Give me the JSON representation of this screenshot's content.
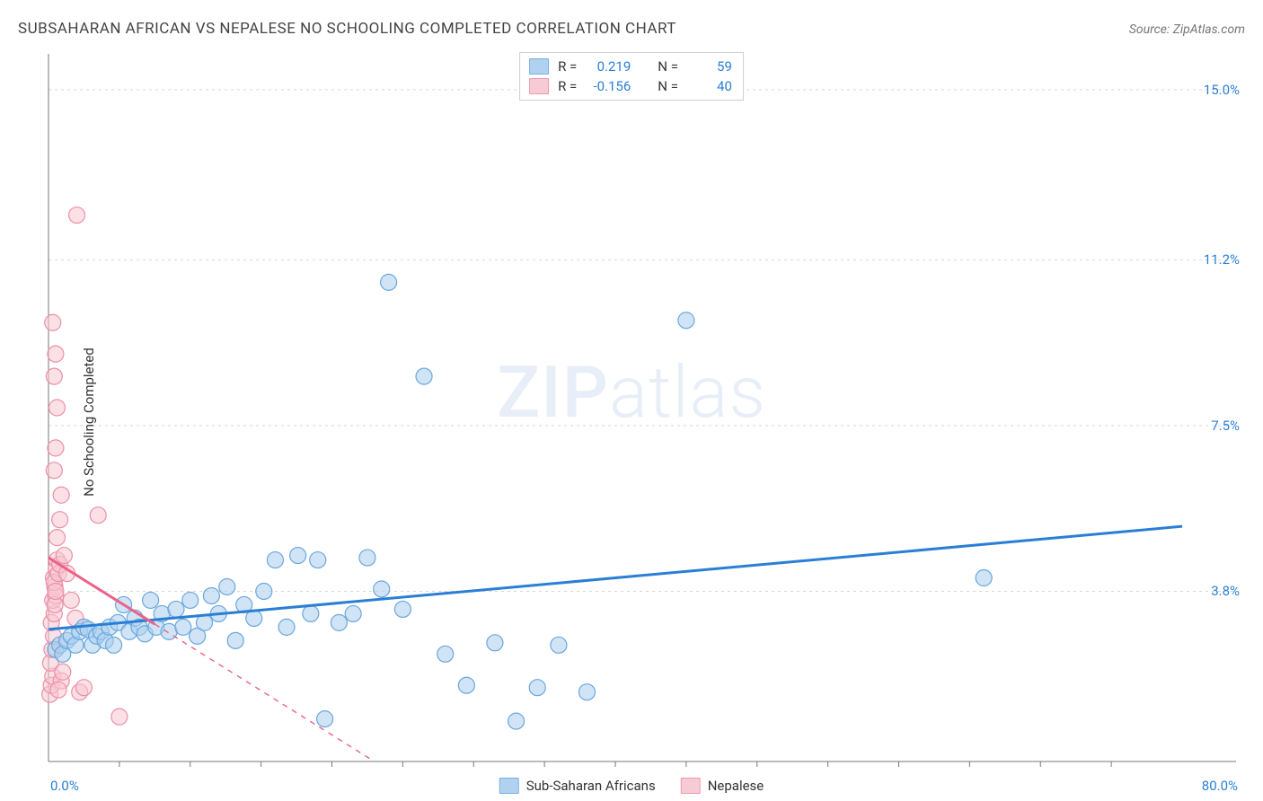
{
  "title": "SUBSAHARAN AFRICAN VS NEPALESE NO SCHOOLING COMPLETED CORRELATION CHART",
  "source_prefix": "Source: ",
  "source": "ZipAtlas.com",
  "watermark_zip": "ZIP",
  "watermark_atlas": "atlas",
  "chart": {
    "type": "scatter",
    "ylabel": "No Schooling Completed",
    "xlim": [
      0.0,
      80.0
    ],
    "ylim": [
      0.0,
      15.8
    ],
    "x_axis_label_min": "0.0%",
    "x_axis_label_max": "80.0%",
    "y_ticks": [
      3.8,
      7.5,
      11.2,
      15.0
    ],
    "y_tick_labels": [
      "3.8%",
      "7.5%",
      "11.2%",
      "15.0%"
    ],
    "x_minor_ticks": [
      5,
      10,
      15,
      20,
      25,
      30,
      35,
      40,
      45,
      50,
      55,
      60,
      65,
      70,
      75
    ],
    "gridline_color": "#d7d7d7",
    "axis_color": "#777777",
    "background_color": "#ffffff",
    "marker_radius": 9,
    "marker_stroke_width": 1.2,
    "trend_line_width": 3,
    "trend_dash_width": 1.4,
    "series": [
      {
        "key": "subsaharan",
        "label": "Sub-Saharan Africans",
        "fill_color": "#a9cdef",
        "stroke_color": "#6aa7dd",
        "fill_opacity": 0.55,
        "r_value": "0.219",
        "n_value": "59",
        "trend": {
          "x1": 0.0,
          "y1": 2.95,
          "x2": 80.0,
          "y2": 5.25,
          "color": "#2a7fd4",
          "solid_until_x": 80.0
        },
        "points": [
          [
            0.5,
            2.5
          ],
          [
            0.8,
            2.6
          ],
          [
            1.0,
            2.4
          ],
          [
            1.3,
            2.7
          ],
          [
            1.6,
            2.8
          ],
          [
            1.9,
            2.6
          ],
          [
            2.2,
            2.9
          ],
          [
            2.5,
            3.0
          ],
          [
            2.8,
            2.95
          ],
          [
            3.1,
            2.6
          ],
          [
            3.4,
            2.8
          ],
          [
            3.7,
            2.9
          ],
          [
            4.0,
            2.7
          ],
          [
            4.3,
            3.0
          ],
          [
            4.6,
            2.6
          ],
          [
            4.9,
            3.1
          ],
          [
            5.3,
            3.5
          ],
          [
            5.7,
            2.9
          ],
          [
            6.1,
            3.2
          ],
          [
            6.4,
            3.0
          ],
          [
            6.8,
            2.85
          ],
          [
            7.2,
            3.6
          ],
          [
            7.6,
            3.0
          ],
          [
            8.0,
            3.3
          ],
          [
            8.5,
            2.9
          ],
          [
            9.0,
            3.4
          ],
          [
            9.5,
            3.0
          ],
          [
            10.0,
            3.6
          ],
          [
            10.5,
            2.8
          ],
          [
            11.0,
            3.1
          ],
          [
            11.5,
            3.7
          ],
          [
            12.0,
            3.3
          ],
          [
            12.6,
            3.9
          ],
          [
            13.2,
            2.7
          ],
          [
            13.8,
            3.5
          ],
          [
            14.5,
            3.2
          ],
          [
            15.2,
            3.8
          ],
          [
            16.0,
            4.5
          ],
          [
            16.8,
            3.0
          ],
          [
            17.6,
            4.6
          ],
          [
            18.5,
            3.3
          ],
          [
            19.0,
            4.5
          ],
          [
            19.5,
            0.95
          ],
          [
            20.5,
            3.1
          ],
          [
            21.5,
            3.3
          ],
          [
            22.5,
            4.55
          ],
          [
            23.5,
            3.85
          ],
          [
            24.0,
            10.7
          ],
          [
            25.0,
            3.4
          ],
          [
            26.5,
            8.6
          ],
          [
            28.0,
            2.4
          ],
          [
            29.5,
            1.7
          ],
          [
            31.5,
            2.65
          ],
          [
            33.0,
            0.9
          ],
          [
            34.5,
            1.65
          ],
          [
            36.0,
            2.6
          ],
          [
            38.0,
            1.55
          ],
          [
            45.0,
            9.85
          ],
          [
            66.0,
            4.1
          ]
        ]
      },
      {
        "key": "nepalese",
        "label": "Nepalese",
        "fill_color": "#f7c6d2",
        "stroke_color": "#ec8fa8",
        "fill_opacity": 0.55,
        "r_value": "-0.156",
        "n_value": "40",
        "trend": {
          "x1": 0.0,
          "y1": 4.55,
          "x2": 23.0,
          "y2": 0.0,
          "color": "#ec6286",
          "solid_until_x": 7.5
        },
        "points": [
          [
            0.1,
            1.5
          ],
          [
            0.2,
            1.7
          ],
          [
            0.3,
            1.9
          ],
          [
            0.15,
            2.2
          ],
          [
            0.25,
            2.5
          ],
          [
            0.35,
            2.8
          ],
          [
            0.2,
            3.1
          ],
          [
            0.4,
            3.3
          ],
          [
            0.3,
            3.6
          ],
          [
            0.45,
            3.9
          ],
          [
            0.35,
            4.1
          ],
          [
            0.5,
            3.7
          ],
          [
            0.55,
            4.3
          ],
          [
            0.4,
            4.0
          ],
          [
            0.6,
            4.5
          ],
          [
            0.45,
            3.5
          ],
          [
            0.7,
            4.2
          ],
          [
            0.5,
            3.8
          ],
          [
            0.8,
            4.4
          ],
          [
            0.6,
            5.0
          ],
          [
            0.9,
            1.8
          ],
          [
            0.7,
            1.6
          ],
          [
            1.0,
            2.0
          ],
          [
            1.1,
            4.6
          ],
          [
            0.8,
            5.4
          ],
          [
            0.9,
            5.95
          ],
          [
            0.4,
            6.5
          ],
          [
            0.5,
            7.0
          ],
          [
            0.6,
            7.9
          ],
          [
            0.4,
            8.6
          ],
          [
            0.5,
            9.1
          ],
          [
            0.3,
            9.8
          ],
          [
            1.3,
            4.2
          ],
          [
            1.6,
            3.6
          ],
          [
            1.9,
            3.2
          ],
          [
            2.2,
            1.55
          ],
          [
            2.5,
            1.65
          ],
          [
            3.5,
            5.5
          ],
          [
            5.0,
            1.0
          ],
          [
            2.0,
            12.2
          ]
        ]
      }
    ],
    "legend_top_labels": {
      "r": "R  =",
      "n": "N  ="
    }
  }
}
